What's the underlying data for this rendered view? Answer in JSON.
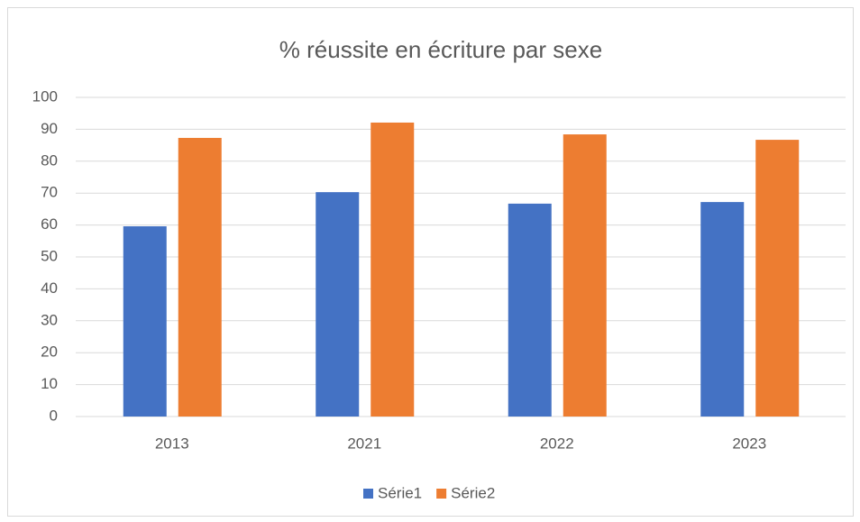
{
  "chart_data": {
    "type": "bar",
    "title": "% réussite en écriture par sexe",
    "categories": [
      "2013",
      "2021",
      "2022",
      "2023"
    ],
    "series": [
      {
        "name": "Série1",
        "color": "#4472c4",
        "values": [
          59.6,
          70.3,
          66.7,
          67.2
        ]
      },
      {
        "name": "Série2",
        "color": "#ed7d31",
        "values": [
          87.3,
          92.1,
          88.4,
          86.7
        ]
      }
    ],
    "ylim": [
      0,
      100
    ],
    "yticks": [
      0,
      10,
      20,
      30,
      40,
      50,
      60,
      70,
      80,
      90,
      100
    ],
    "grid": true,
    "legend": "bottom"
  }
}
